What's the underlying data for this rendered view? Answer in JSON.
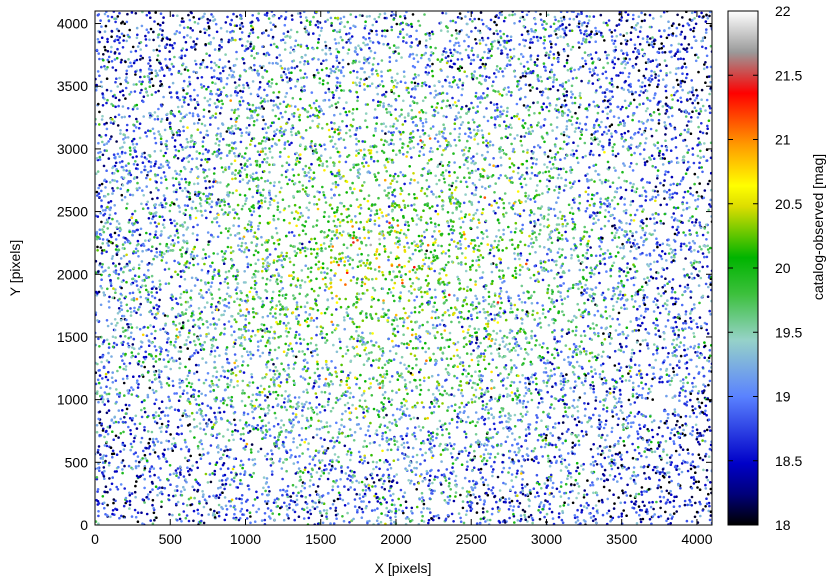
{
  "chart_data": {
    "type": "scatter",
    "xlabel": "X [pixels]",
    "ylabel": "Y [pixels]",
    "xlim": [
      0,
      4100
    ],
    "ylim": [
      0,
      4100
    ],
    "xticks": [
      "0",
      "500",
      "1000",
      "1500",
      "2000",
      "2500",
      "3000",
      "3500",
      "4000"
    ],
    "yticks": [
      "0",
      "500",
      "1000",
      "1500",
      "2000",
      "2500",
      "3000",
      "3500",
      "4000"
    ],
    "colorbar": {
      "label": "catalog-observed [mag]",
      "range": [
        18,
        22
      ],
      "ticks": [
        "18",
        "18.5",
        "19",
        "19.5",
        "20",
        "20.5",
        "21",
        "21.5",
        "22"
      ],
      "colormap": [
        "#000000",
        "#0000c8",
        "#5a82ff",
        "#96d2c8",
        "#00b400",
        "#ffff00",
        "#ff8c00",
        "#ff0000",
        "#9a9a9a",
        "#ffffff"
      ]
    },
    "grid": false,
    "points": {
      "count": 12000,
      "note_dense_center": [
        1900,
        2100
      ],
      "x_range": [
        0,
        4100
      ],
      "y_range": [
        0,
        4100
      ],
      "mag_range": [
        18,
        22
      ]
    }
  }
}
